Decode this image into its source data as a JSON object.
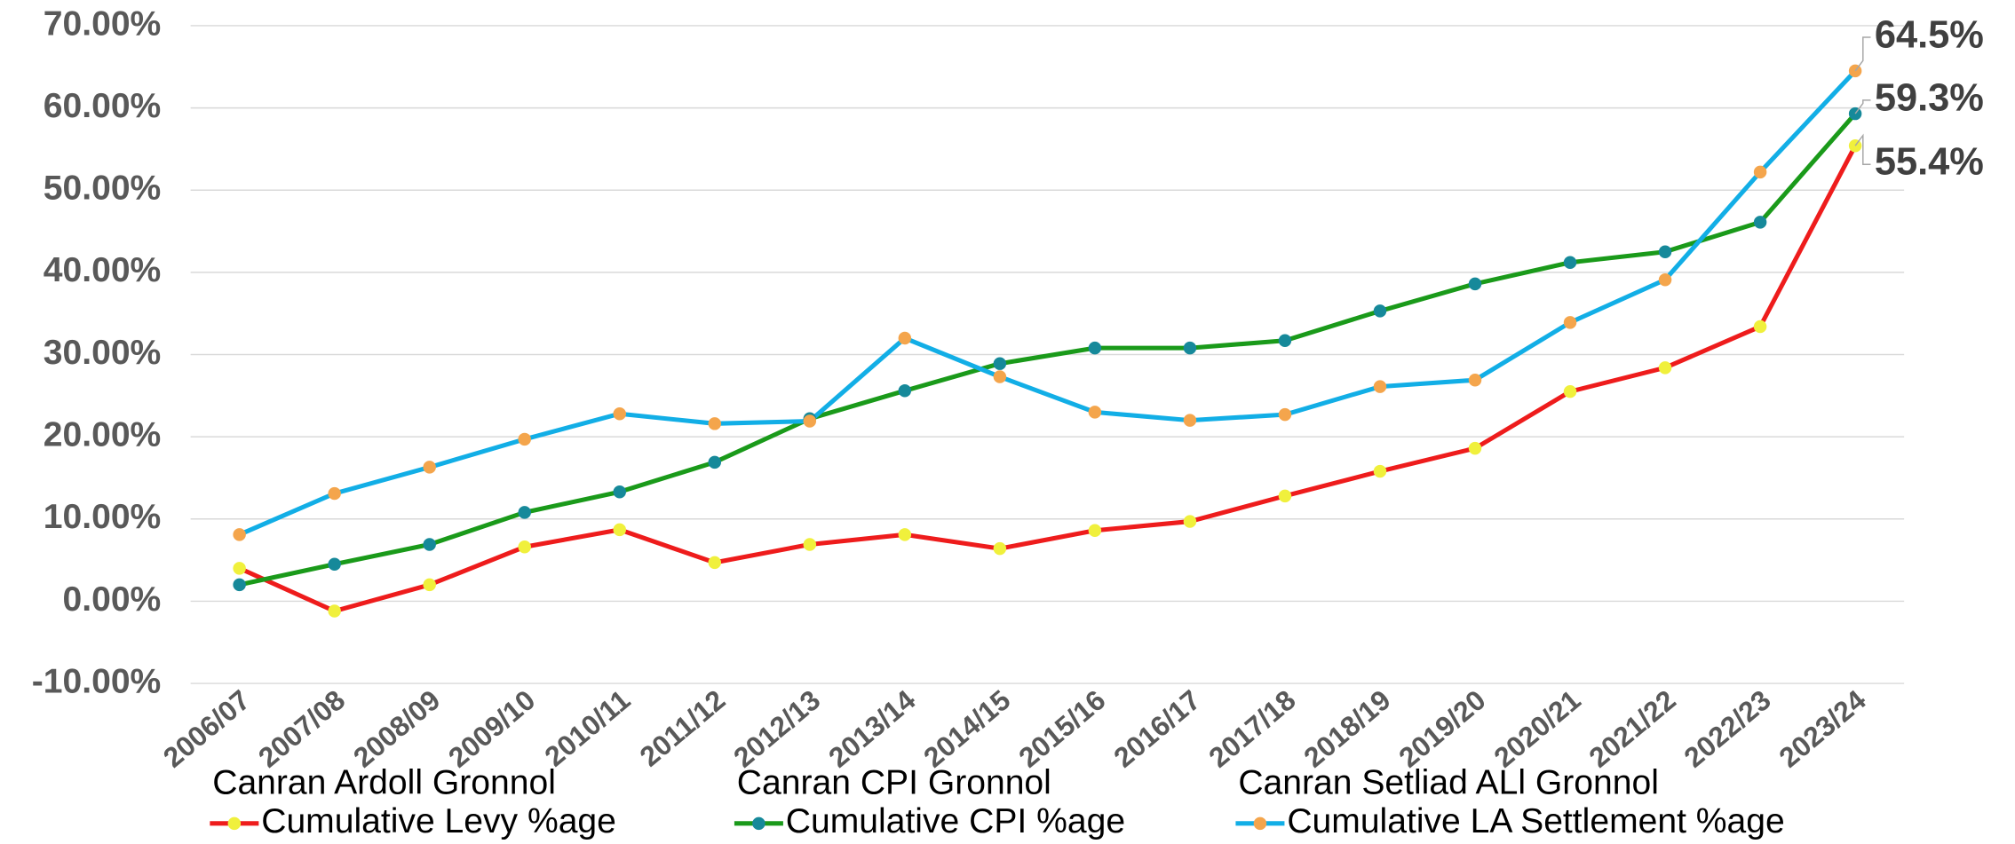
{
  "chart_data": {
    "type": "line",
    "categories": [
      "2006/07",
      "2007/08",
      "2008/09",
      "2009/10",
      "2010/11",
      "2011/12",
      "2012/13",
      "2013/14",
      "2014/15",
      "2015/16",
      "2016/17",
      "2017/18",
      "2018/19",
      "2019/20",
      "2020/21",
      "2021/22",
      "2022/23",
      "2023/24"
    ],
    "ylim": [
      -10,
      70
    ],
    "yticks": [
      {
        "value": -10,
        "label": "-10.00%"
      },
      {
        "value": 0,
        "label": "0.00%"
      },
      {
        "value": 10,
        "label": "10.00%"
      },
      {
        "value": 20,
        "label": "20.00%"
      },
      {
        "value": 30,
        "label": "30.00%"
      },
      {
        "value": 40,
        "label": "40.00%"
      },
      {
        "value": 50,
        "label": "50.00%"
      },
      {
        "value": 60,
        "label": "60.00%"
      },
      {
        "value": 70,
        "label": "70.00%"
      }
    ],
    "grid": true,
    "legend_titles": [
      "Canran Ardoll Gronnol",
      "Canran CPI Gronnol",
      "Canran Setliad ALl Gronnol"
    ],
    "series": [
      {
        "name": "Cumulative Levy %age",
        "color": "#ee1c1c",
        "marker_color": "#f0f03c",
        "values": [
          4.0,
          -1.2,
          2.0,
          6.6,
          8.7,
          4.7,
          6.9,
          8.1,
          6.4,
          8.6,
          9.7,
          12.8,
          15.8,
          18.6,
          25.5,
          28.4,
          33.4,
          55.4
        ],
        "value_labels": [
          null,
          null,
          null,
          null,
          null,
          null,
          null,
          null,
          null,
          null,
          null,
          null,
          null,
          null,
          null,
          null,
          null,
          "55.4%"
        ]
      },
      {
        "name": "Cumulative CPI %age",
        "color": "#1a9a1a",
        "marker_color": "#16899a",
        "values": [
          2.0,
          4.5,
          6.9,
          10.8,
          13.3,
          16.9,
          22.2,
          25.6,
          28.9,
          30.8,
          30.8,
          31.7,
          35.3,
          38.6,
          41.2,
          42.5,
          46.1,
          59.3
        ],
        "value_labels": [
          null,
          null,
          null,
          null,
          null,
          null,
          null,
          null,
          null,
          null,
          null,
          null,
          null,
          null,
          null,
          null,
          null,
          "59.3%"
        ]
      },
      {
        "name": "Cumulative LA Settlement %age",
        "color": "#12aee6",
        "marker_color": "#f4a54c",
        "values": [
          8.1,
          13.1,
          16.3,
          19.7,
          22.8,
          21.6,
          21.9,
          32.0,
          27.3,
          23.0,
          22.0,
          22.7,
          26.1,
          26.9,
          33.9,
          39.1,
          52.2,
          64.5
        ],
        "value_labels": [
          null,
          null,
          null,
          null,
          null,
          null,
          null,
          null,
          null,
          null,
          null,
          null,
          null,
          null,
          null,
          null,
          null,
          "64.5%"
        ]
      }
    ]
  }
}
